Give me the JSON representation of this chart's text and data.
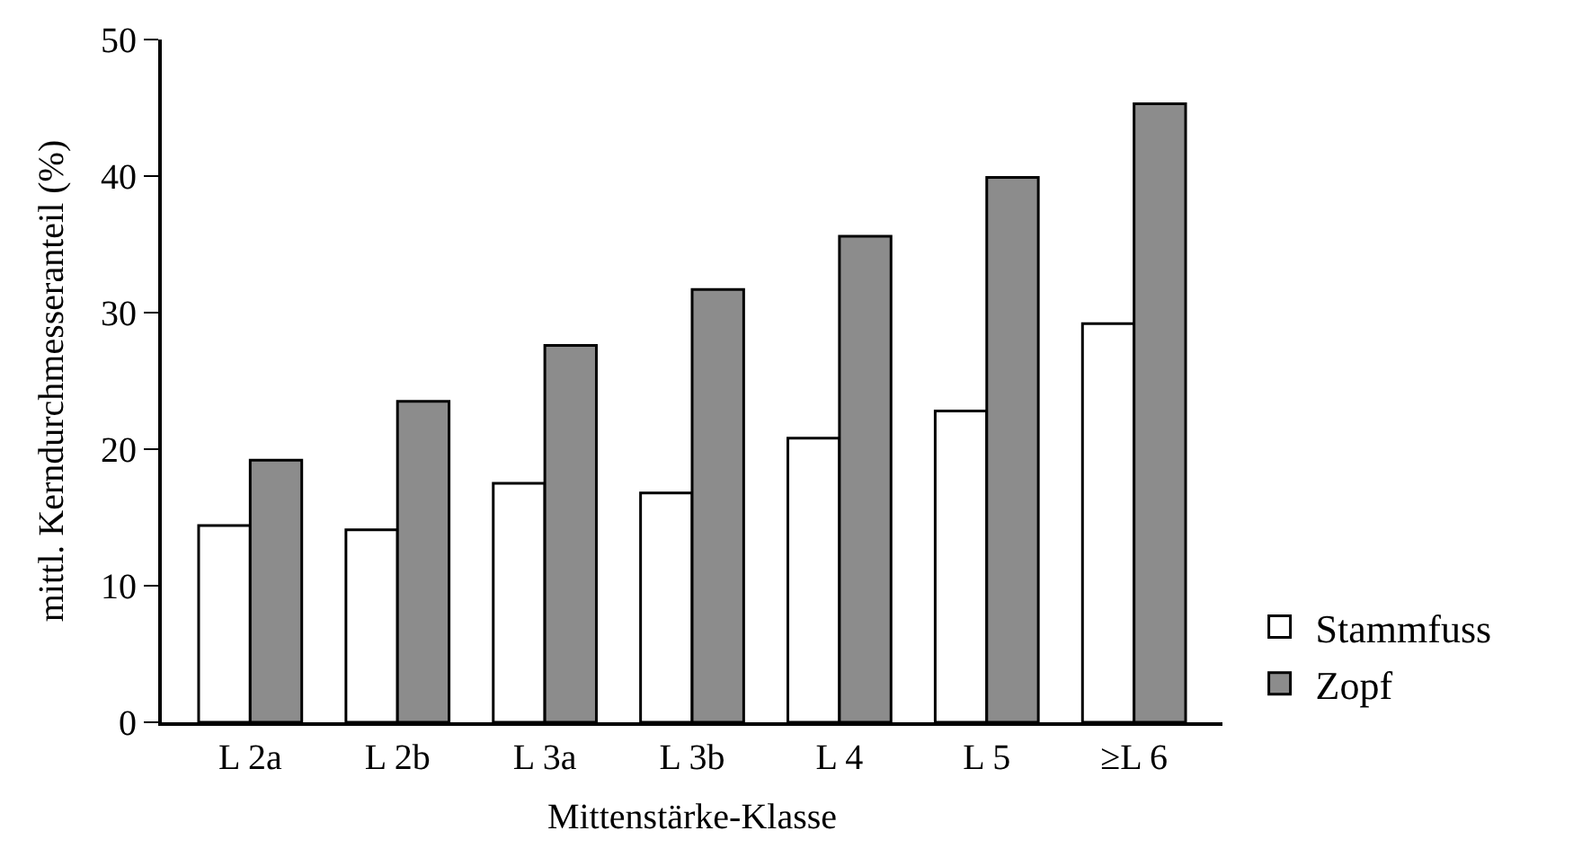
{
  "chart_data": {
    "type": "bar",
    "xlabel": "Mittenstärke-Klasse",
    "ylabel": "mittl. Kerndurchmesseranteil (%)",
    "categories": [
      "L 2a",
      "L 2b",
      "L 3a",
      "L 3b",
      "L 4",
      "L 5",
      "≥L 6"
    ],
    "series": [
      {
        "name": "Stammfuss",
        "color": "#ffffff",
        "values": [
          14.4,
          14.1,
          17.5,
          16.8,
          20.8,
          22.8,
          29.2
        ]
      },
      {
        "name": "Zopf",
        "color": "#8c8c8c",
        "values": [
          19.2,
          23.5,
          27.6,
          31.7,
          35.6,
          39.9,
          45.3
        ]
      }
    ],
    "ylim": [
      0,
      50
    ],
    "yticks": [
      0,
      10,
      20,
      30,
      40,
      50
    ],
    "grid": false,
    "legend": "bottom right"
  }
}
